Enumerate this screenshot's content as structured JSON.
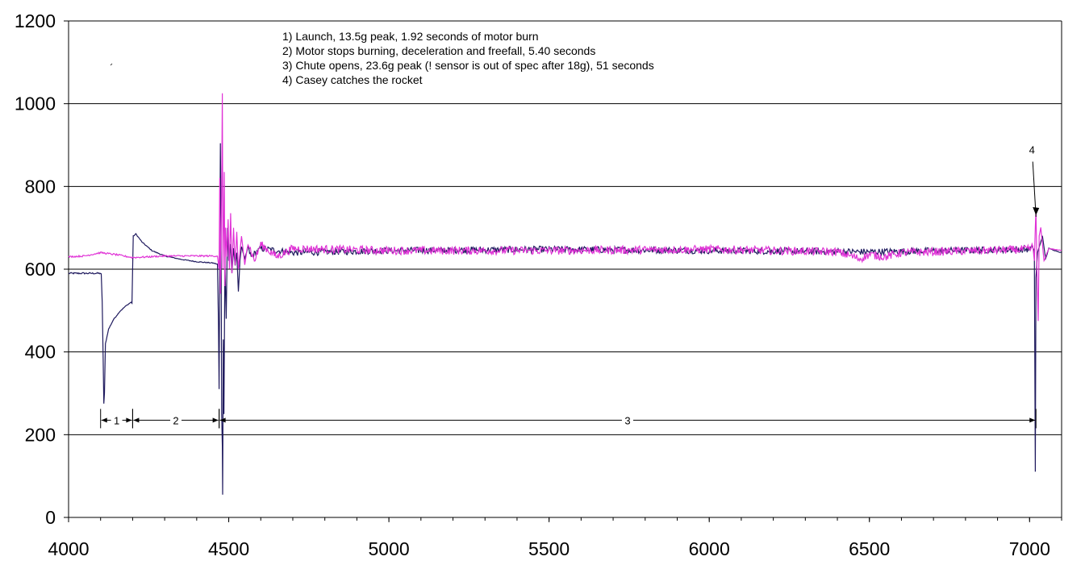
{
  "chart_data": {
    "type": "line",
    "title": "",
    "xlabel": "",
    "ylabel": "",
    "xlim": [
      4000,
      7100
    ],
    "ylim": [
      0,
      1200
    ],
    "x_ticks": [
      "4000",
      "4500",
      "5000",
      "5500",
      "6000",
      "6500",
      "7000"
    ],
    "y_ticks": [
      "0",
      "200",
      "400",
      "600",
      "800",
      "1000",
      "1200"
    ],
    "grid": "horizontal",
    "colors": {
      "series_1": "#1f1a5e",
      "series_2": "#e032d6"
    },
    "annotations": [
      "1) Launch, 13.5g peak, 1.92 seconds of motor burn",
      "2) Motor stops burning, deceleration and freefall, 5.40 seconds",
      "3) Chute opens, 23.6g peak (! sensor is out of spec after 18g), 51 seconds",
      "4) Casey catches the rocket"
    ],
    "segments": [
      {
        "label": "1",
        "x_start": 4100,
        "x_end": 4200
      },
      {
        "label": "2",
        "x_start": 4200,
        "x_end": 4470
      },
      {
        "label": "3",
        "x_start": 4470,
        "x_end": 7020
      }
    ],
    "marker": {
      "label": "4",
      "x": 7020,
      "y": 750
    },
    "series": [
      {
        "points": [
          [
            4000,
            590
          ],
          [
            4100,
            590
          ],
          [
            4102,
            588
          ],
          [
            4105,
            520
          ],
          [
            4108,
            380
          ],
          [
            4110,
            275
          ],
          [
            4112,
            300
          ],
          [
            4115,
            420
          ],
          [
            4125,
            455
          ],
          [
            4140,
            478
          ],
          [
            4160,
            498
          ],
          [
            4180,
            512
          ],
          [
            4195,
            520
          ],
          [
            4198,
            518
          ],
          [
            4200,
            600
          ],
          [
            4202,
            680
          ],
          [
            4210,
            685
          ],
          [
            4230,
            665
          ],
          [
            4260,
            645
          ],
          [
            4300,
            632
          ],
          [
            4350,
            624
          ],
          [
            4400,
            618
          ],
          [
            4450,
            615
          ],
          [
            4465,
            612
          ],
          [
            4468,
            470
          ],
          [
            4470,
            310
          ],
          [
            4472,
            620
          ],
          [
            4474,
            905
          ],
          [
            4476,
            720
          ],
          [
            4477,
            470
          ],
          [
            4478,
            250
          ],
          [
            4480,
            175
          ],
          [
            4481,
            55
          ],
          [
            4483,
            430
          ],
          [
            4485,
            250
          ],
          [
            4488,
            620
          ],
          [
            4492,
            480
          ],
          [
            4496,
            700
          ],
          [
            4500,
            620
          ],
          [
            4505,
            660
          ],
          [
            4510,
            590
          ],
          [
            4515,
            650
          ],
          [
            4520,
            610
          ],
          [
            4525,
            640
          ],
          [
            4530,
            545
          ],
          [
            4535,
            620
          ],
          [
            4540,
            655
          ],
          [
            4550,
            625
          ],
          [
            4560,
            652
          ],
          [
            4570,
            630
          ],
          [
            4600,
            650
          ],
          [
            4700,
            640
          ],
          [
            5000,
            645
          ],
          [
            5500,
            648
          ],
          [
            6000,
            645
          ],
          [
            6500,
            642
          ],
          [
            7000,
            648
          ],
          [
            7010,
            652
          ],
          [
            7015,
            645
          ],
          [
            7018,
            110
          ],
          [
            7020,
            580
          ],
          [
            7025,
            640
          ],
          [
            7040,
            680
          ],
          [
            7050,
            625
          ],
          [
            7060,
            650
          ],
          [
            7100,
            640
          ]
        ],
        "noise": 16
      },
      {
        "points": [
          [
            4000,
            630
          ],
          [
            4050,
            632
          ],
          [
            4100,
            640
          ],
          [
            4150,
            635
          ],
          [
            4200,
            628
          ],
          [
            4250,
            630
          ],
          [
            4300,
            632
          ],
          [
            4400,
            632
          ],
          [
            4465,
            632
          ],
          [
            4470,
            600
          ],
          [
            4472,
            820
          ],
          [
            4474,
            540
          ],
          [
            4476,
            660
          ],
          [
            4478,
            780
          ],
          [
            4480,
            1025
          ],
          [
            4482,
            600
          ],
          [
            4484,
            700
          ],
          [
            4486,
            835
          ],
          [
            4488,
            560
          ],
          [
            4490,
            700
          ],
          [
            4494,
            630
          ],
          [
            4498,
            720
          ],
          [
            4502,
            600
          ],
          [
            4506,
            735
          ],
          [
            4510,
            590
          ],
          [
            4515,
            700
          ],
          [
            4520,
            610
          ],
          [
            4525,
            690
          ],
          [
            4530,
            600
          ],
          [
            4540,
            680
          ],
          [
            4550,
            610
          ],
          [
            4560,
            665
          ],
          [
            4580,
            620
          ],
          [
            4600,
            660
          ],
          [
            4650,
            630
          ],
          [
            4700,
            650
          ],
          [
            5000,
            645
          ],
          [
            5500,
            645
          ],
          [
            6000,
            648
          ],
          [
            6400,
            642
          ],
          [
            6470,
            625
          ],
          [
            6500,
            635
          ],
          [
            6550,
            630
          ],
          [
            6600,
            640
          ],
          [
            7000,
            648
          ],
          [
            7010,
            655
          ],
          [
            7015,
            620
          ],
          [
            7018,
            700
          ],
          [
            7020,
            745
          ],
          [
            7023,
            600
          ],
          [
            7027,
            475
          ],
          [
            7030,
            680
          ],
          [
            7035,
            700
          ],
          [
            7045,
            620
          ],
          [
            7060,
            650
          ],
          [
            7100,
            645
          ]
        ],
        "noise": 20
      }
    ]
  }
}
